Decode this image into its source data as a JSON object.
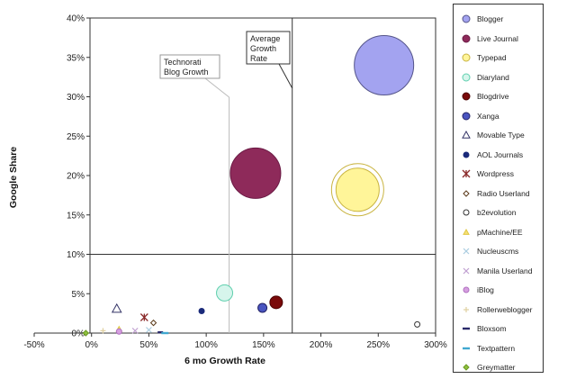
{
  "chart_data": {
    "type": "bubble-scatter",
    "title": "",
    "xlabel": "6 mo Growth Rate",
    "ylabel": "Google Share",
    "xlim": [
      -50,
      300
    ],
    "ylim": [
      0,
      40
    ],
    "xticks": [
      "-50%",
      "0%",
      "50%",
      "100%",
      "150%",
      "200%",
      "250%",
      "300%"
    ],
    "yticks": [
      "0%",
      "5%",
      "10%",
      "15%",
      "20%",
      "25%",
      "30%",
      "35%",
      "40%"
    ],
    "reference_lines": {
      "technorati_growth_x": 120,
      "average_growth_x": 175,
      "horizontal_y": 10
    },
    "annotations": [
      {
        "id": "technorati",
        "lines": [
          "Technorati",
          "Blog Growth"
        ]
      },
      {
        "id": "average",
        "lines": [
          "Average",
          "Growth",
          "Rate"
        ]
      }
    ],
    "series": [
      {
        "name": "Blogger",
        "x": 255,
        "y": 34,
        "r": 33,
        "color": "#a3a3f0",
        "stroke": "#55558a",
        "marker": "circle"
      },
      {
        "name": "Live Journal",
        "x": 143,
        "y": 20.3,
        "r": 28,
        "color": "#8e2a5a",
        "stroke": "#6a1a44",
        "marker": "circle"
      },
      {
        "name": "Typepad",
        "x": 232,
        "y": 18.2,
        "r": 24,
        "color": "#fff599",
        "stroke": "#c9b441",
        "marker": "circle"
      },
      {
        "name": "Diaryland",
        "x": 116,
        "y": 5.1,
        "r": 9,
        "color": "#d6f5ec",
        "stroke": "#5fcfae",
        "marker": "circle"
      },
      {
        "name": "Blogdrive",
        "x": 161,
        "y": 3.9,
        "r": 7,
        "color": "#7a0a0a",
        "stroke": "#4a0000",
        "marker": "circle"
      },
      {
        "name": "Xanga",
        "x": 149,
        "y": 3.2,
        "r": 5,
        "color": "#4a55c0",
        "stroke": "#222266",
        "marker": "circle"
      },
      {
        "name": "Movable Type",
        "x": 22,
        "y": 3.1,
        "r": 5,
        "color": "#ffffff",
        "stroke": "#333366",
        "marker": "triangle"
      },
      {
        "name": "AOL Journals",
        "x": 96,
        "y": 2.8,
        "r": 3,
        "color": "#1a2a7a",
        "stroke": "#1a2a7a",
        "marker": "circle"
      },
      {
        "name": "Wordpress",
        "x": 46,
        "y": 2.0,
        "r": 4,
        "color": "#8a2a2a",
        "stroke": "#8a2a2a",
        "marker": "star"
      },
      {
        "name": "Radio Userland",
        "x": 54,
        "y": 1.3,
        "r": 3,
        "color": "#ffffff",
        "stroke": "#5a3a1a",
        "marker": "diamond"
      },
      {
        "name": "b2evolution",
        "x": 284,
        "y": 1.1,
        "r": 3,
        "color": "#ffffff",
        "stroke": "#333333",
        "marker": "circle"
      },
      {
        "name": "pMachine/EE",
        "x": 24,
        "y": 0.5,
        "r": 3,
        "color": "#f5e07a",
        "stroke": "#e0c840",
        "marker": "triangle"
      },
      {
        "name": "Nucleuscms",
        "x": 50,
        "y": 0.4,
        "r": 3,
        "color": "#aacce0",
        "stroke": "#aacce0",
        "marker": "x"
      },
      {
        "name": "Manila Userland",
        "x": 38,
        "y": 0.3,
        "r": 3,
        "color": "#c0a0d0",
        "stroke": "#c0a0d0",
        "marker": "x"
      },
      {
        "name": "iBlog",
        "x": 24,
        "y": 0.2,
        "r": 3,
        "color": "#d6a0e0",
        "stroke": "#b070c0",
        "marker": "circle"
      },
      {
        "name": "Rollerweblogger",
        "x": 10,
        "y": 0.3,
        "r": 3,
        "color": "#e0d0a0",
        "stroke": "#e0d0a0",
        "marker": "plus"
      },
      {
        "name": "Bloxsom",
        "x": 60,
        "y": 0.1,
        "r": 2,
        "color": "#2a2a6a",
        "stroke": "#2a2a6a",
        "marker": "dash"
      },
      {
        "name": "Textpattern",
        "x": 64,
        "y": 0.0,
        "r": 3,
        "color": "#40a8d0",
        "stroke": "#40a8d0",
        "marker": "dash"
      },
      {
        "name": "Greymatter",
        "x": -5,
        "y": 0.0,
        "r": 3,
        "color": "#90c040",
        "stroke": "#6a9a20",
        "marker": "diamond"
      }
    ]
  }
}
